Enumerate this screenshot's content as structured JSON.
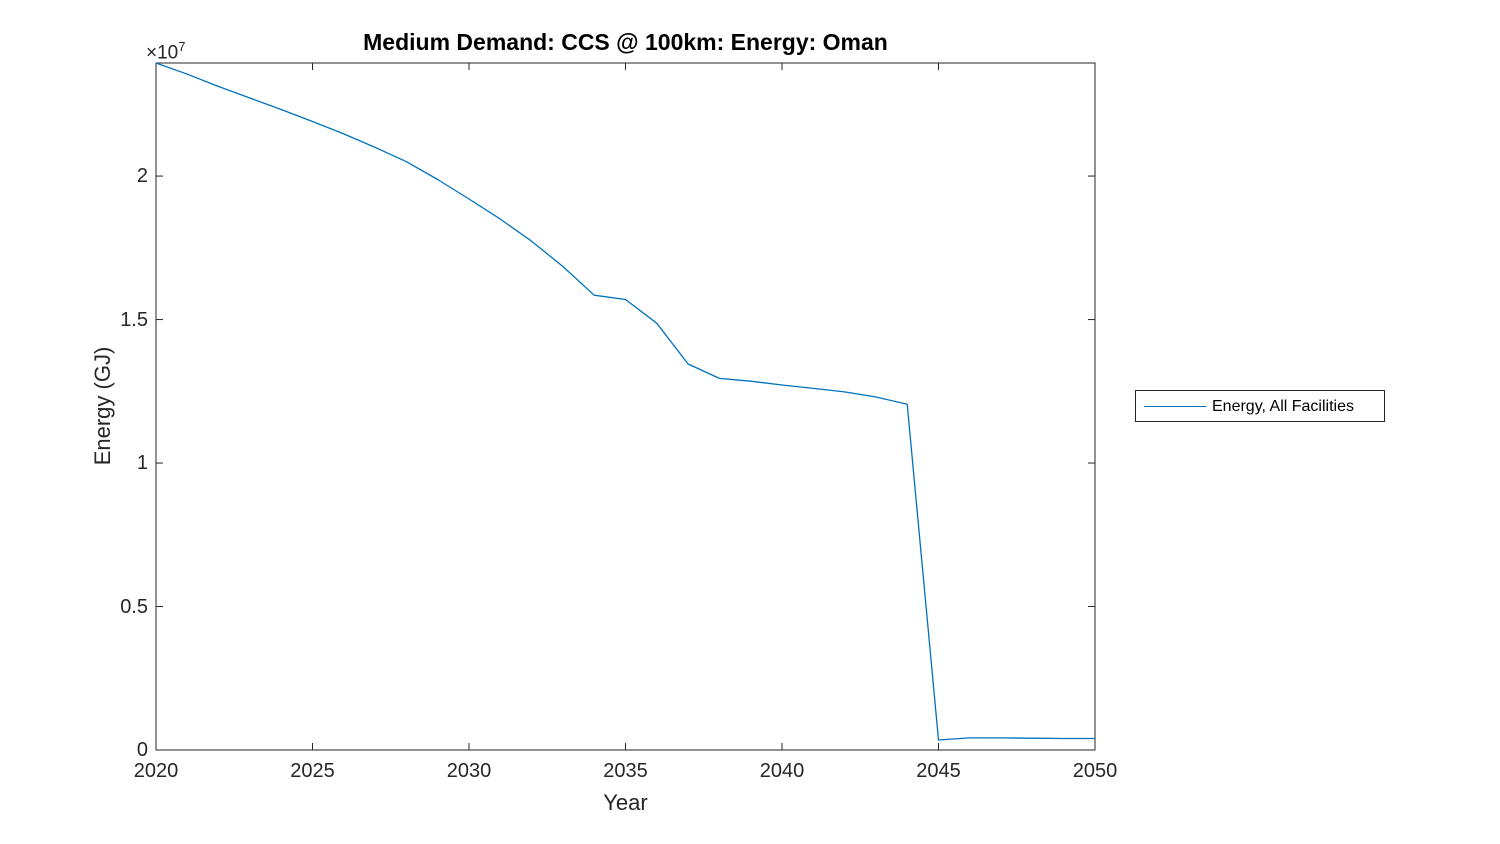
{
  "figure": {
    "background": "#ffffff",
    "axis_color": "#262626"
  },
  "chart_data": {
    "type": "line",
    "title": "Medium Demand: CCS @ 100km: Energy: Oman",
    "xlabel": "Year",
    "ylabel": "Energy (GJ)",
    "y_multiplier_base": "×10",
    "y_multiplier_exponent": "7",
    "xlim": [
      2020,
      2050
    ],
    "ylim": [
      0,
      23940000
    ],
    "xticks": [
      2020,
      2025,
      2030,
      2035,
      2040,
      2045,
      2050
    ],
    "yticks": [
      {
        "value": 0,
        "label": "0"
      },
      {
        "value": 5000000,
        "label": "0.5"
      },
      {
        "value": 10000000,
        "label": "1"
      },
      {
        "value": 15000000,
        "label": "1.5"
      },
      {
        "value": 20000000,
        "label": "2"
      }
    ],
    "grid": false,
    "box": true,
    "tick_direction": "in",
    "legend": {
      "position": "outside-right",
      "entries": [
        {
          "label": "Energy, All Facilities",
          "color": "#0072BD"
        }
      ]
    },
    "x": [
      2020,
      2021,
      2022,
      2023,
      2024,
      2025,
      2026,
      2027,
      2028,
      2029,
      2030,
      2031,
      2032,
      2033,
      2034,
      2035,
      2036,
      2037,
      2038,
      2039,
      2040,
      2041,
      2042,
      2043,
      2044,
      2045,
      2046,
      2047,
      2048,
      2049,
      2050
    ],
    "series": [
      {
        "name": "Energy, All Facilities",
        "color": "#0072BD",
        "values": [
          23940000,
          23550000,
          23120000,
          22720000,
          22320000,
          21900000,
          21470000,
          21000000,
          20500000,
          19880000,
          19200000,
          18500000,
          17730000,
          16850000,
          15850000,
          15700000,
          14870000,
          13450000,
          12950000,
          12850000,
          12720000,
          12600000,
          12480000,
          12300000,
          12050000,
          350000,
          420000,
          420000,
          410000,
          400000,
          400000
        ]
      }
    ]
  }
}
